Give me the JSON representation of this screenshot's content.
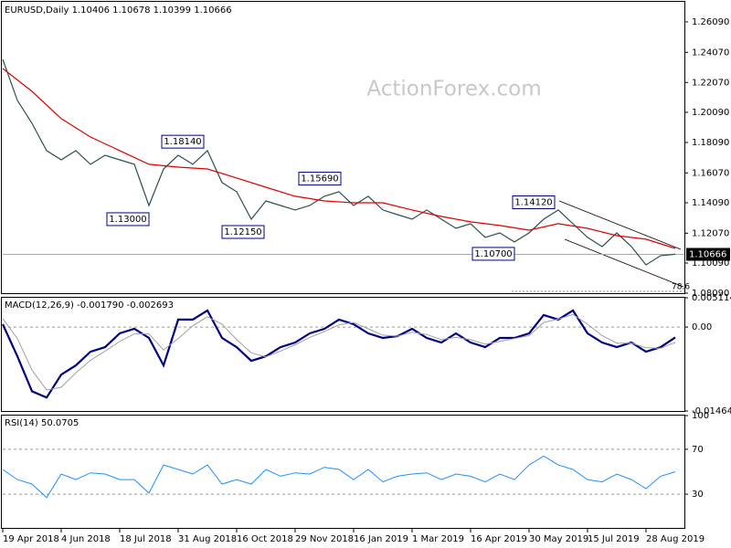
{
  "chart_data": [
    {
      "type": "line",
      "title": "EURUSD,Daily  1.10406 1.10678 1.10399 1.10666",
      "watermark": "ActionForex.com",
      "xlim": [
        0,
        372
      ],
      "ylim": [
        1.0809,
        1.2736
      ],
      "yticks": [
        {
          "value": 1.2609,
          "label": "1.26090"
        },
        {
          "value": 1.2407,
          "label": "1.24070"
        },
        {
          "value": 1.2207,
          "label": "1.22070"
        },
        {
          "value": 1.2009,
          "label": "1.20090"
        },
        {
          "value": 1.1809,
          "label": "1.18090"
        },
        {
          "value": 1.1607,
          "label": "1.16070"
        },
        {
          "value": 1.1409,
          "label": "1.14090"
        },
        {
          "value": 1.1207,
          "label": "1.12070"
        },
        {
          "value": 1.1009,
          "label": "1.10090"
        },
        {
          "value": 1.0809,
          "label": "1.08090"
        }
      ],
      "series": [
        {
          "color": "#2f4f4f",
          "x": [
            0,
            8,
            16,
            24,
            32,
            40,
            48,
            56,
            64,
            72,
            80,
            88,
            96,
            104,
            112,
            120,
            128,
            136,
            144,
            152,
            160,
            168,
            176,
            184,
            192,
            200,
            208,
            216,
            224,
            232,
            240,
            248,
            256,
            264,
            272,
            280,
            288,
            296,
            304,
            312,
            320,
            328,
            336,
            344,
            352,
            360,
            368
          ],
          "values": [
            1.2361,
            1.2088,
            1.1936,
            1.1755,
            1.1694,
            1.1755,
            1.1664,
            1.1724,
            1.1694,
            1.1664,
            1.1391,
            1.1633,
            1.1724,
            1.1664,
            1.1755,
            1.1543,
            1.1482,
            1.13,
            1.1421,
            1.1391,
            1.1361,
            1.1391,
            1.1452,
            1.1482,
            1.1391,
            1.1452,
            1.1361,
            1.133,
            1.13,
            1.1361,
            1.13,
            1.1239,
            1.127,
            1.1179,
            1.1209,
            1.1149,
            1.1209,
            1.13,
            1.1361,
            1.127,
            1.1179,
            1.1118,
            1.1209,
            1.1118,
            1.0997,
            1.1058,
            1.1067
          ]
        },
        {
          "color": "#e00000",
          "x": [
            0,
            16,
            32,
            48,
            64,
            80,
            96,
            112,
            128,
            144,
            160,
            176,
            192,
            208,
            224,
            240,
            256,
            272,
            288,
            304,
            320,
            336,
            352,
            368
          ],
          "values": [
            1.23,
            1.2148,
            1.1967,
            1.1845,
            1.1755,
            1.1664,
            1.1645,
            1.1633,
            1.1573,
            1.1512,
            1.1452,
            1.1421,
            1.1409,
            1.1409,
            1.1361,
            1.1318,
            1.1282,
            1.1258,
            1.1227,
            1.127,
            1.1239,
            1.1191,
            1.1167,
            1.1106
          ]
        }
      ],
      "annotations": [
        {
          "label": "1.18140",
          "value": 1.1814,
          "x": 111
        },
        {
          "label": "1.13000",
          "value": 1.13,
          "x": 81
        },
        {
          "label": "1.12150",
          "value": 1.1215,
          "x": 144
        },
        {
          "label": "1.15690",
          "value": 1.1569,
          "x": 186
        },
        {
          "label": "1.14120",
          "value": 1.1412,
          "x": 303
        },
        {
          "label": "1.10700",
          "value": 1.107,
          "x": 281
        }
      ],
      "current": {
        "value": 1.10666,
        "label": "1.10666"
      },
      "fib_label": "78.6"
    },
    {
      "type": "line",
      "title": "MACD(12,26,9) -0.001790 -0.002693",
      "xlim": [
        0,
        372
      ],
      "ylim": [
        -0.014647,
        0.005114
      ],
      "yticks": [
        0.005114,
        {
          "value": 0,
          "label": "0.00"
        },
        -0.014647
      ],
      "levels": [
        0
      ],
      "series": [
        {
          "color": "#000080",
          "width": 2.2,
          "x": [
            0,
            8,
            16,
            24,
            32,
            40,
            48,
            56,
            64,
            72,
            80,
            88,
            96,
            104,
            112,
            120,
            128,
            136,
            144,
            152,
            160,
            168,
            176,
            184,
            192,
            200,
            208,
            216,
            224,
            232,
            240,
            248,
            256,
            264,
            272,
            280,
            288,
            296,
            304,
            312,
            320,
            328,
            336,
            344,
            352,
            360,
            368
          ],
          "values": [
            0.0005,
            -0.0051,
            -0.0112,
            -0.0123,
            -0.0083,
            -0.0067,
            -0.0043,
            -0.0035,
            -0.0011,
            -0.0003,
            -0.0019,
            -0.0067,
            0.0013,
            0.0013,
            0.0029,
            -0.0019,
            -0.0035,
            -0.0059,
            -0.0051,
            -0.0035,
            -0.0027,
            -0.0011,
            -0.0003,
            0.0013,
            0.0005,
            -0.0011,
            -0.0019,
            -0.0016,
            -0.0003,
            -0.0019,
            -0.0027,
            -0.0011,
            -0.0027,
            -0.0035,
            -0.0019,
            -0.0019,
            -0.0011,
            0.0021,
            0.0013,
            0.0029,
            -0.0011,
            -0.0027,
            -0.0035,
            -0.0027,
            -0.0043,
            -0.0035,
            -0.0018
          ]
        },
        {
          "color": "#a0a0a0",
          "width": 1,
          "x": [
            0,
            8,
            16,
            24,
            32,
            40,
            48,
            56,
            64,
            72,
            80,
            88,
            96,
            104,
            112,
            120,
            128,
            136,
            144,
            152,
            160,
            168,
            176,
            184,
            192,
            200,
            208,
            216,
            224,
            232,
            240,
            248,
            256,
            264,
            272,
            280,
            288,
            296,
            304,
            312,
            320,
            328,
            336,
            344,
            352,
            360,
            368
          ],
          "values": [
            0.0015,
            -0.002,
            -0.0075,
            -0.011,
            -0.0105,
            -0.008,
            -0.0058,
            -0.0042,
            -0.0025,
            -0.0012,
            -0.0012,
            -0.004,
            -0.002,
            0.0002,
            0.0018,
            0.0005,
            -0.0022,
            -0.0045,
            -0.0052,
            -0.0042,
            -0.0031,
            -0.0018,
            -0.0008,
            0.0004,
            0.0008,
            -0.0003,
            -0.0014,
            -0.0016,
            -0.0009,
            -0.0013,
            -0.0022,
            -0.0018,
            -0.0022,
            -0.003,
            -0.0025,
            -0.002,
            -0.0015,
            0.0008,
            0.0014,
            0.0022,
            0.0005,
            -0.0015,
            -0.0028,
            -0.0028,
            -0.0036,
            -0.0037,
            -0.0027
          ]
        }
      ]
    },
    {
      "type": "line",
      "title": "RSI(14) 50.0705",
      "xlim": [
        0,
        372
      ],
      "ylim": [
        0,
        100
      ],
      "yticks": [
        100,
        70,
        30
      ],
      "levels": [
        70,
        30
      ],
      "xticks": [
        {
          "value": 0,
          "label": "19 Apr 2018"
        },
        {
          "value": 32,
          "label": "4 Jun 2018"
        },
        {
          "value": 64,
          "label": "18 Jul 2018"
        },
        {
          "value": 96,
          "label": "31 Aug 2018"
        },
        {
          "value": 128,
          "label": "16 Oct 2018"
        },
        {
          "value": 160,
          "label": "29 Nov 2018"
        },
        {
          "value": 192,
          "label": "16 Jan 2019"
        },
        {
          "value": 224,
          "label": "1 Mar 2019"
        },
        {
          "value": 256,
          "label": "16 Apr 2019"
        },
        {
          "value": 288,
          "label": "30 May 2019"
        },
        {
          "value": 320,
          "label": "15 Jul 2019"
        },
        {
          "value": 352,
          "label": "28 Aug 2019"
        }
      ],
      "series": [
        {
          "color": "#1e90ff",
          "width": 1,
          "x": [
            0,
            8,
            16,
            24,
            32,
            40,
            48,
            56,
            64,
            72,
            80,
            88,
            96,
            104,
            112,
            120,
            128,
            136,
            144,
            152,
            160,
            168,
            176,
            184,
            192,
            200,
            208,
            216,
            224,
            232,
            240,
            248,
            256,
            264,
            272,
            280,
            288,
            296,
            304,
            312,
            320,
            328,
            336,
            344,
            352,
            360,
            368
          ],
          "values": [
            52,
            43,
            39,
            27,
            48,
            43,
            49,
            48,
            43,
            43,
            31,
            56,
            52,
            48,
            56,
            39,
            43,
            39,
            52,
            46,
            49,
            48,
            54,
            52,
            43,
            52,
            41,
            46,
            48,
            49,
            43,
            48,
            46,
            41,
            48,
            43,
            56,
            64,
            56,
            52,
            43,
            41,
            48,
            43,
            35,
            46,
            50
          ]
        }
      ]
    }
  ]
}
